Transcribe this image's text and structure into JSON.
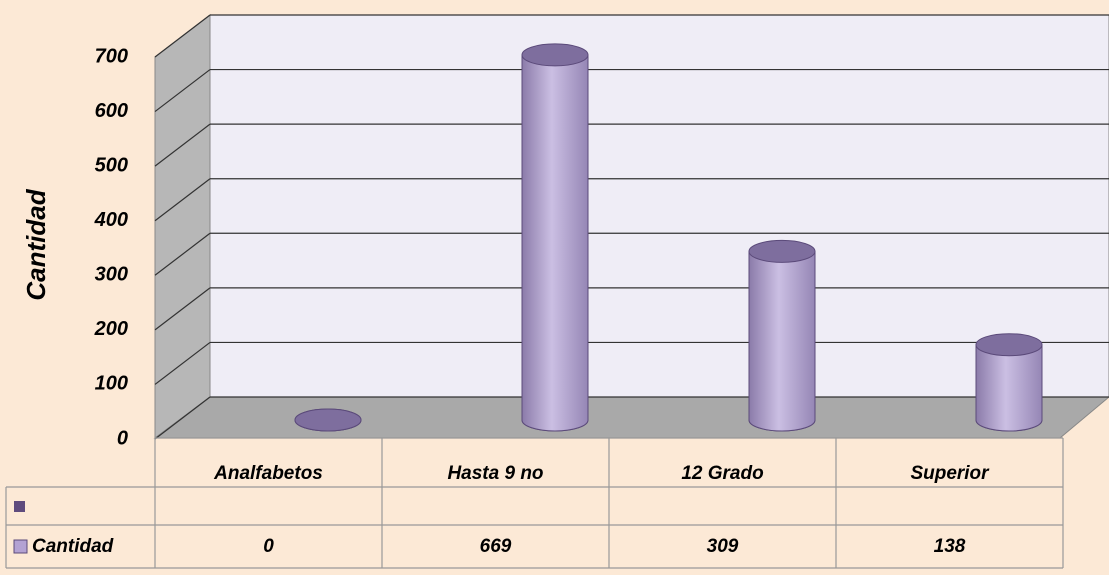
{
  "chart_data": {
    "type": "bar3d",
    "y_label": "Cantidad",
    "categories": [
      "Analfabetos",
      "Hasta 9 no",
      "12 Grado",
      "Superior"
    ],
    "series": [
      {
        "name": "Cantidad",
        "color": "#b3a2d3",
        "values": [
          0,
          669,
          309,
          138
        ]
      }
    ],
    "ylim": [
      0,
      700
    ],
    "yticks": [
      0,
      100,
      200,
      300,
      400,
      500,
      600,
      700
    ],
    "grid": true
  }
}
